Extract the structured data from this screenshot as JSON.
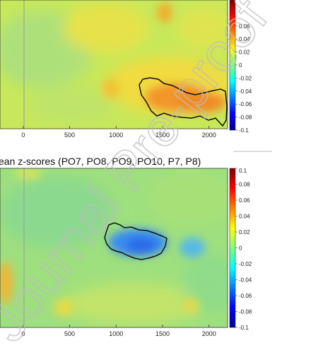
{
  "chart_data": [
    {
      "type": "heatmap",
      "title": "",
      "x_ticks": [
        "0",
        "500",
        "1000",
        "1500",
        "2000"
      ],
      "x_tick_values": [
        0,
        500,
        1000,
        1500,
        2000
      ],
      "xlim": [
        -250,
        2200
      ],
      "colorbar": {
        "ticks": [
          "0.06",
          "0.04",
          "0.02",
          "0",
          "-0.02",
          "-0.04",
          "-0.06",
          "-0.08",
          "-0.1"
        ],
        "range": [
          -0.1,
          0.1
        ]
      },
      "clusters": [
        {
          "sign": "positive",
          "time_range": [
            1250,
            2150
          ],
          "peak_value": 0.06
        }
      ]
    },
    {
      "type": "heatmap",
      "title": "ean z-scores (PO7, PO8. PO9, PO10, P7, P8)",
      "x_ticks": [
        "0",
        "500",
        "1000",
        "1500",
        "2000"
      ],
      "x_tick_values": [
        0,
        500,
        1000,
        1500,
        2000
      ],
      "xlim": [
        -250,
        2200
      ],
      "colorbar": {
        "ticks": [
          "0.1",
          "0.08",
          "0.06",
          "0.04",
          "0.02",
          "0",
          "-0.02",
          "-0.04",
          "-0.06",
          "-0.08",
          "-0.1"
        ],
        "range": [
          -0.1,
          0.1
        ]
      },
      "clusters": [
        {
          "sign": "negative",
          "time_range": [
            900,
            1550
          ],
          "peak_value": -0.05
        }
      ]
    }
  ],
  "watermark": "Journal Pre-proof"
}
